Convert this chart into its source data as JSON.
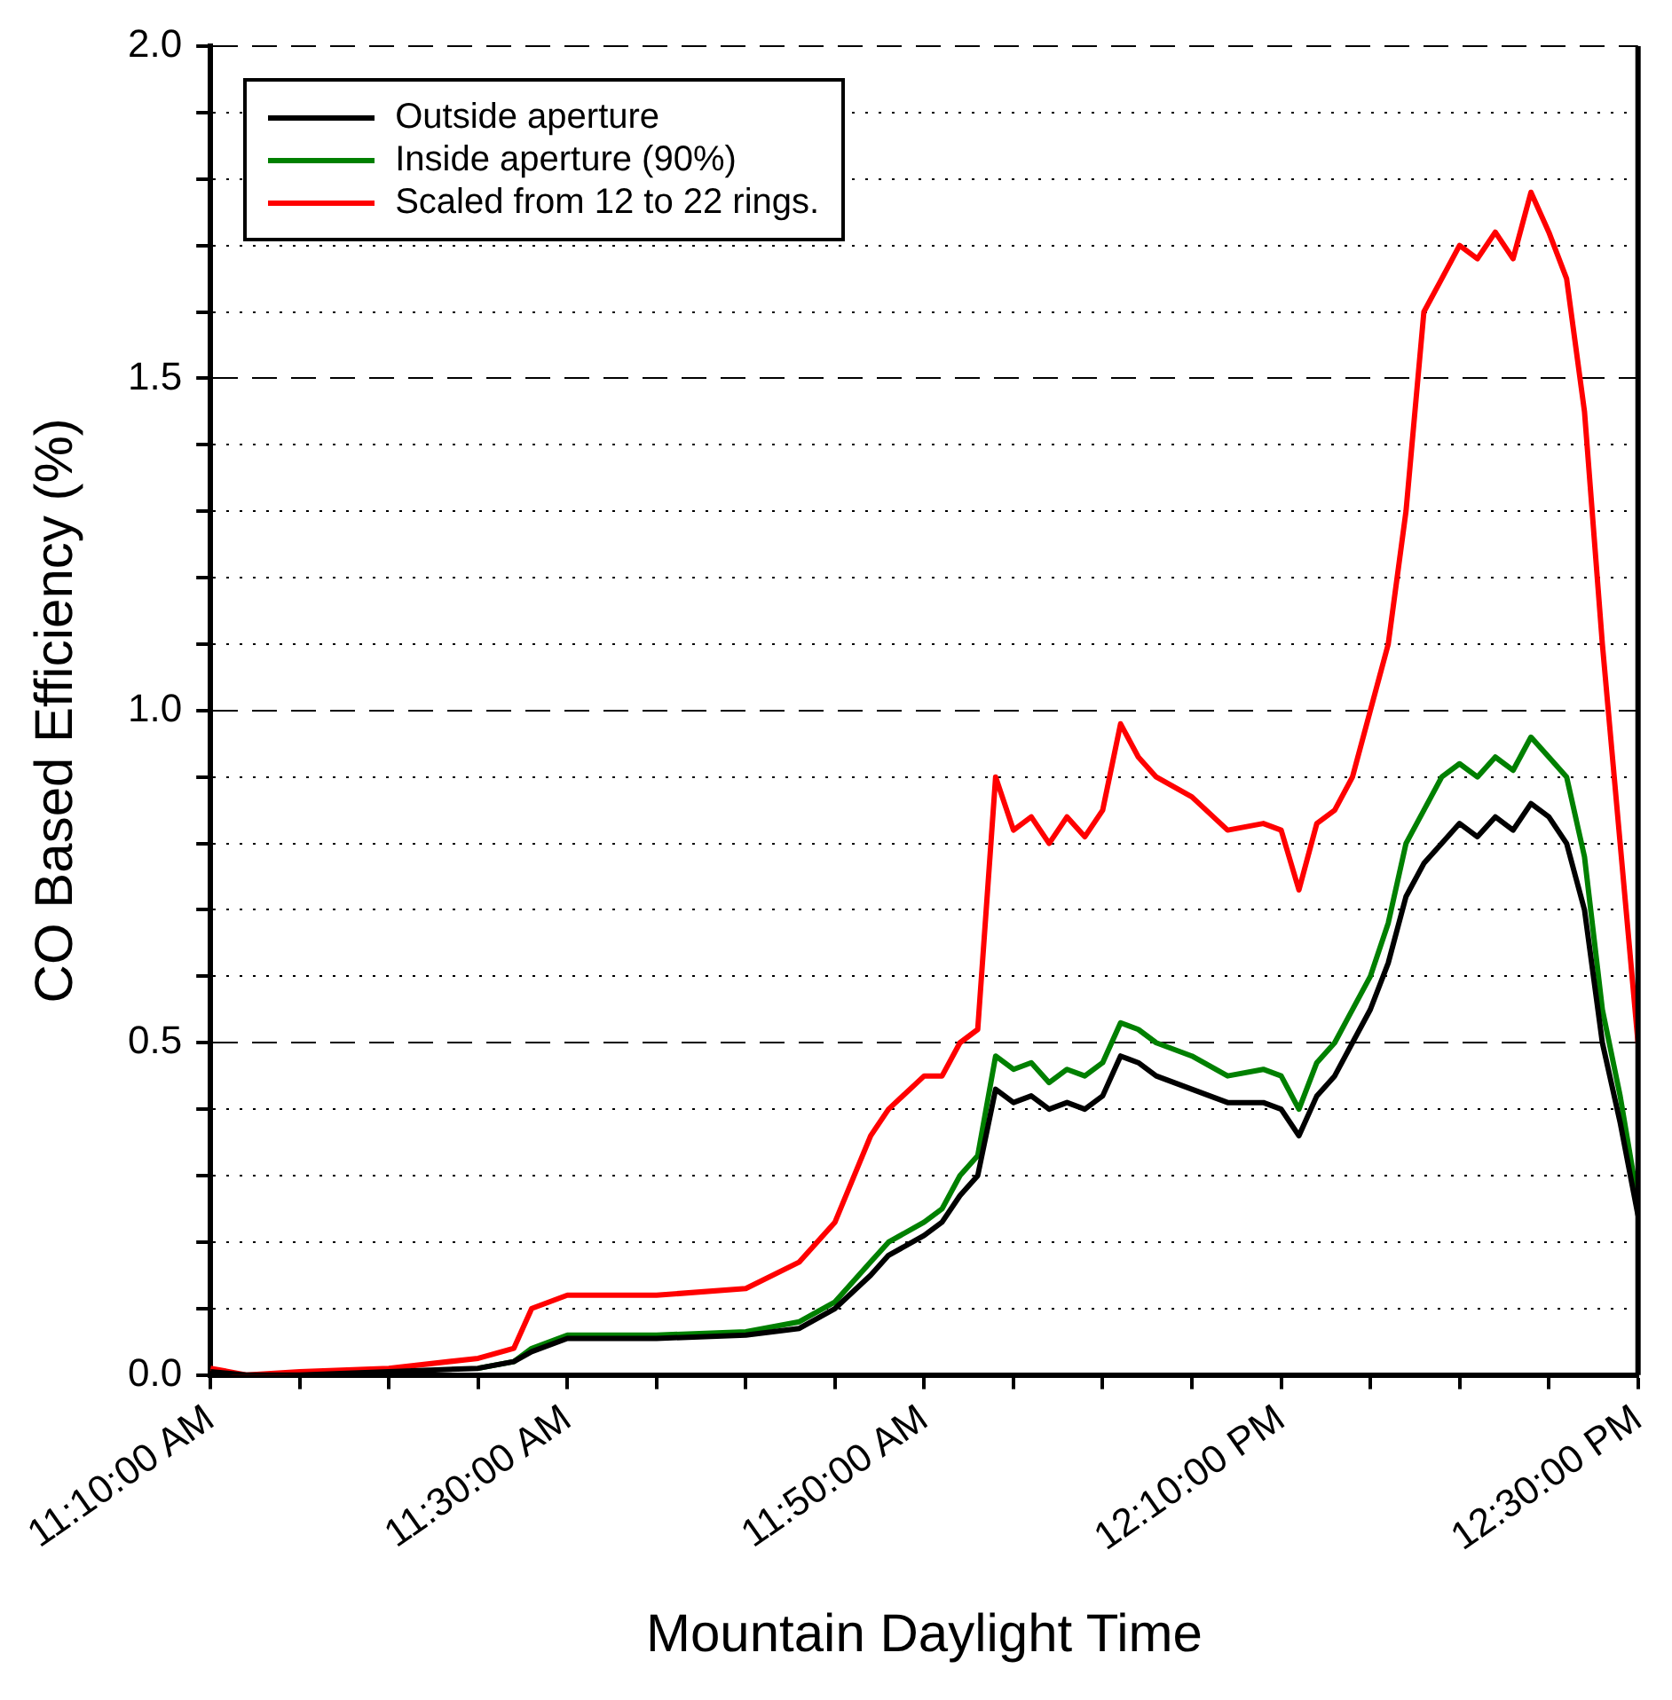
{
  "chart_data": {
    "type": "line",
    "xlabel": "Mountain Daylight Time",
    "ylabel": "CO Based Efficiency (%)",
    "x": [
      11.1667,
      11.2,
      11.25,
      11.3333,
      11.4167,
      11.45,
      11.4667,
      11.5,
      11.5833,
      11.6667,
      11.7167,
      11.75,
      11.7833,
      11.8,
      11.8333,
      11.85,
      11.8667,
      11.8833,
      11.9,
      11.9167,
      11.9333,
      11.95,
      11.9667,
      11.9833,
      12.0,
      12.0167,
      12.0333,
      12.05,
      12.0833,
      12.1167,
      12.15,
      12.1667,
      12.1833,
      12.2,
      12.2167,
      12.2333,
      12.25,
      12.2667,
      12.2833,
      12.3,
      12.3167,
      12.3333,
      12.35,
      12.3667,
      12.3833,
      12.4,
      12.4167,
      12.4333,
      12.45,
      12.4667,
      12.4833,
      12.5
    ],
    "series": [
      {
        "name": "Outside aperture",
        "color": "#000000",
        "values": [
          0.005,
          0,
          0,
          0.005,
          0.01,
          0.02,
          0.035,
          0.055,
          0.055,
          0.06,
          0.07,
          0.1,
          0.15,
          0.18,
          0.21,
          0.23,
          0.27,
          0.3,
          0.43,
          0.41,
          0.42,
          0.4,
          0.41,
          0.4,
          0.42,
          0.48,
          0.47,
          0.45,
          0.43,
          0.41,
          0.41,
          0.4,
          0.36,
          0.42,
          0.45,
          0.5,
          0.55,
          0.62,
          0.72,
          0.77,
          0.8,
          0.83,
          0.81,
          0.84,
          0.82,
          0.86,
          0.84,
          0.8,
          0.7,
          0.5,
          0.38,
          0.24
        ]
      },
      {
        "name": "Inside aperture (90%)",
        "color": "#008000",
        "values": [
          null,
          null,
          null,
          null,
          0.01,
          0.02,
          0.04,
          0.06,
          0.06,
          0.065,
          0.08,
          0.11,
          0.17,
          0.2,
          0.23,
          0.25,
          0.3,
          0.33,
          0.48,
          0.46,
          0.47,
          0.44,
          0.46,
          0.45,
          0.47,
          0.53,
          0.52,
          0.5,
          0.48,
          0.45,
          0.46,
          0.45,
          0.4,
          0.47,
          0.5,
          0.55,
          0.6,
          0.68,
          0.8,
          0.85,
          0.9,
          0.92,
          0.9,
          0.93,
          0.91,
          0.96,
          0.93,
          0.9,
          0.78,
          0.55,
          0.42,
          0.26
        ]
      },
      {
        "name": "Scaled from 12 to 22 rings.",
        "color": "#ff0000",
        "values": [
          0.01,
          0,
          0.005,
          0.01,
          0.025,
          0.04,
          0.1,
          0.12,
          0.12,
          0.13,
          0.17,
          0.23,
          0.36,
          0.4,
          0.45,
          0.45,
          0.5,
          0.52,
          0.9,
          0.82,
          0.84,
          0.8,
          0.84,
          0.81,
          0.85,
          0.98,
          0.93,
          0.9,
          0.87,
          0.82,
          0.83,
          0.82,
          0.73,
          0.83,
          0.85,
          0.9,
          1.0,
          1.1,
          1.3,
          1.6,
          1.65,
          1.7,
          1.68,
          1.72,
          1.68,
          1.78,
          1.72,
          1.65,
          1.45,
          1.1,
          0.8,
          0.5
        ]
      }
    ],
    "xlim": [
      11.1667,
      12.5
    ],
    "xticks": [
      {
        "value": 11.1667,
        "label": "11:10:00 AM"
      },
      {
        "value": 11.25,
        "label": null
      },
      {
        "value": 11.3333,
        "label": null
      },
      {
        "value": 11.4167,
        "label": null
      },
      {
        "value": 11.5,
        "label": "11:30:00 AM"
      },
      {
        "value": 11.5833,
        "label": null
      },
      {
        "value": 11.6667,
        "label": null
      },
      {
        "value": 11.75,
        "label": null
      },
      {
        "value": 11.8333,
        "label": "11:50:00 AM"
      },
      {
        "value": 11.9167,
        "label": null
      },
      {
        "value": 12.0,
        "label": null
      },
      {
        "value": 12.0833,
        "label": null
      },
      {
        "value": 12.1667,
        "label": "12:10:00 PM"
      },
      {
        "value": 12.25,
        "label": null
      },
      {
        "value": 12.3333,
        "label": null
      },
      {
        "value": 12.4167,
        "label": null
      },
      {
        "value": 12.5,
        "label": "12:30:00 PM"
      }
    ],
    "ylim": [
      0,
      2
    ],
    "yticks": [
      {
        "value": 0,
        "label": "0.0"
      },
      {
        "value": 0.1,
        "label": null
      },
      {
        "value": 0.2,
        "label": null
      },
      {
        "value": 0.3,
        "label": null
      },
      {
        "value": 0.4,
        "label": null
      },
      {
        "value": 0.5,
        "label": "0.5"
      },
      {
        "value": 0.6,
        "label": null
      },
      {
        "value": 0.7,
        "label": null
      },
      {
        "value": 0.8,
        "label": null
      },
      {
        "value": 0.9,
        "label": null
      },
      {
        "value": 1.0,
        "label": "1.0"
      },
      {
        "value": 1.1,
        "label": null
      },
      {
        "value": 1.2,
        "label": null
      },
      {
        "value": 1.3,
        "label": null
      },
      {
        "value": 1.4,
        "label": null
      },
      {
        "value": 1.5,
        "label": "1.5"
      },
      {
        "value": 1.6,
        "label": null
      },
      {
        "value": 1.7,
        "label": null
      },
      {
        "value": 1.8,
        "label": null
      },
      {
        "value": 1.9,
        "label": null
      },
      {
        "value": 2.0,
        "label": "2.0"
      }
    ],
    "grid": "y",
    "legend": "top left",
    "marker": "none",
    "line_style": "solid"
  }
}
